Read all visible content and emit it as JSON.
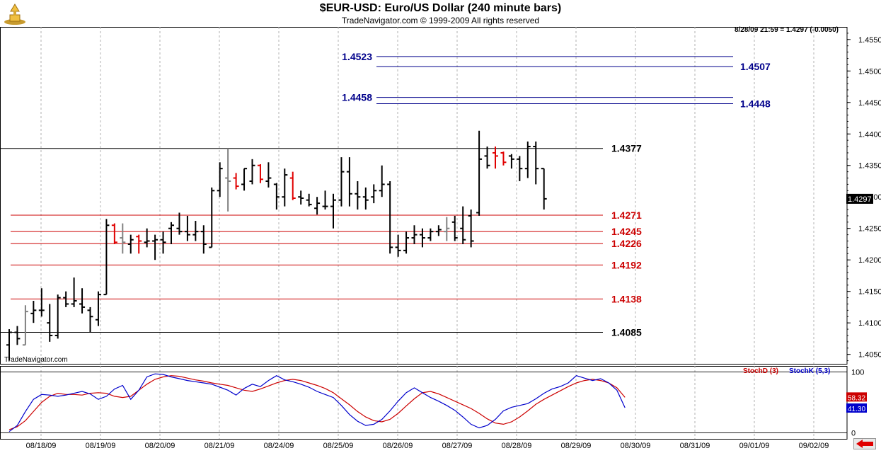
{
  "header": {
    "title": "$EUR-USD:  Euro/US Dollar  (240 minute bars)",
    "subtitle": "TradeNavigator.com © 1999-2009 All rights reserved",
    "quote": "8/28/09 21:59 = 1.4297 (-0.0050)",
    "watermark": "TradeNavigator.com"
  },
  "colors": {
    "up_bar": "#000000",
    "reversal_bar": "#e00000",
    "neutral_bar": "#808080",
    "support_line": "#cc0000",
    "target_line": "#00008b",
    "stoch_d": "#cc0000",
    "stoch_k": "#0000cc"
  },
  "chart_data": [
    {
      "type": "ohlc",
      "title": "$EUR-USD:  Euro/US Dollar  (240 minute bars)",
      "ylim": [
        1.4035,
        1.457
      ],
      "y_ticks": [
        "1.4550",
        "1.4500",
        "1.4450",
        "1.4400",
        "1.4350",
        "1.4300",
        "1.4250",
        "1.4200",
        "1.4150",
        "1.4100",
        "1.4050"
      ],
      "x_labels": [
        "08/18/09",
        "08/19/09",
        "08/20/09",
        "08/21/09",
        "08/24/09",
        "08/25/09",
        "08/26/09",
        "08/27/09",
        "08/28/09",
        "08/29/09",
        "08/30/09",
        "08/31/09",
        "09/01/09",
        "09/02/09"
      ],
      "last_price": "1.4297",
      "bars": [
        {
          "o": 1.4065,
          "h": 1.409,
          "l": 1.404,
          "c": 1.4085,
          "k": "b"
        },
        {
          "o": 1.4085,
          "h": 1.4095,
          "l": 1.4065,
          "c": 1.4075,
          "k": "b"
        },
        {
          "o": 1.4065,
          "h": 1.4128,
          "l": 1.4065,
          "c": 1.4118,
          "k": "g"
        },
        {
          "o": 1.4115,
          "h": 1.4135,
          "l": 1.41,
          "c": 1.412,
          "k": "b"
        },
        {
          "o": 1.412,
          "h": 1.4155,
          "l": 1.411,
          "c": 1.412,
          "k": "b"
        },
        {
          "o": 1.41,
          "h": 1.413,
          "l": 1.407,
          "c": 1.408,
          "k": "b"
        },
        {
          "o": 1.408,
          "h": 1.4145,
          "l": 1.4075,
          "c": 1.414,
          "k": "b"
        },
        {
          "o": 1.414,
          "h": 1.415,
          "l": 1.4125,
          "c": 1.413,
          "k": "b"
        },
        {
          "o": 1.413,
          "h": 1.4172,
          "l": 1.4125,
          "c": 1.4135,
          "k": "b"
        },
        {
          "o": 1.413,
          "h": 1.4155,
          "l": 1.4115,
          "c": 1.4125,
          "k": "b"
        },
        {
          "o": 1.412,
          "h": 1.4125,
          "l": 1.4085,
          "c": 1.411,
          "k": "b"
        },
        {
          "o": 1.4105,
          "h": 1.415,
          "l": 1.4095,
          "c": 1.4145,
          "k": "b"
        },
        {
          "o": 1.4145,
          "h": 1.4265,
          "l": 1.4145,
          "c": 1.4255,
          "k": "b"
        },
        {
          "o": 1.4255,
          "h": 1.4258,
          "l": 1.4225,
          "c": 1.4228,
          "k": "r"
        },
        {
          "o": 1.4235,
          "h": 1.4258,
          "l": 1.421,
          "c": 1.4228,
          "k": "g"
        },
        {
          "o": 1.4225,
          "h": 1.424,
          "l": 1.421,
          "c": 1.4232,
          "k": "b"
        },
        {
          "o": 1.4237,
          "h": 1.424,
          "l": 1.421,
          "c": 1.423,
          "k": "r"
        },
        {
          "o": 1.4228,
          "h": 1.425,
          "l": 1.422,
          "c": 1.423,
          "k": "b"
        },
        {
          "o": 1.423,
          "h": 1.424,
          "l": 1.42,
          "c": 1.4232,
          "k": "b"
        },
        {
          "o": 1.4232,
          "h": 1.4245,
          "l": 1.421,
          "c": 1.4228,
          "k": "b"
        },
        {
          "o": 1.425,
          "h": 1.426,
          "l": 1.4225,
          "c": 1.4255,
          "k": "b"
        },
        {
          "o": 1.425,
          "h": 1.4275,
          "l": 1.424,
          "c": 1.4245,
          "k": "b"
        },
        {
          "o": 1.4245,
          "h": 1.427,
          "l": 1.423,
          "c": 1.424,
          "k": "b"
        },
        {
          "o": 1.424,
          "h": 1.4262,
          "l": 1.423,
          "c": 1.4245,
          "k": "b"
        },
        {
          "o": 1.4245,
          "h": 1.4255,
          "l": 1.421,
          "c": 1.4225,
          "k": "b"
        },
        {
          "o": 1.422,
          "h": 1.4315,
          "l": 1.422,
          "c": 1.431,
          "k": "b"
        },
        {
          "o": 1.431,
          "h": 1.4355,
          "l": 1.43,
          "c": 1.4345,
          "k": "b"
        },
        {
          "o": 1.433,
          "h": 1.4377,
          "l": 1.4277,
          "c": 1.4325,
          "k": "g"
        },
        {
          "o": 1.433,
          "h": 1.4338,
          "l": 1.4312,
          "c": 1.4317,
          "k": "r"
        },
        {
          "o": 1.432,
          "h": 1.4345,
          "l": 1.431,
          "c": 1.4345,
          "k": "b"
        },
        {
          "o": 1.4325,
          "h": 1.436,
          "l": 1.432,
          "c": 1.435,
          "k": "b"
        },
        {
          "o": 1.435,
          "h": 1.4352,
          "l": 1.4322,
          "c": 1.4328,
          "k": "r"
        },
        {
          "o": 1.4325,
          "h": 1.4355,
          "l": 1.4315,
          "c": 1.433,
          "k": "b"
        },
        {
          "o": 1.432,
          "h": 1.4322,
          "l": 1.428,
          "c": 1.43,
          "k": "b"
        },
        {
          "o": 1.43,
          "h": 1.4345,
          "l": 1.4285,
          "c": 1.4335,
          "k": "b"
        },
        {
          "o": 1.433,
          "h": 1.434,
          "l": 1.4295,
          "c": 1.4298,
          "k": "r"
        },
        {
          "o": 1.43,
          "h": 1.431,
          "l": 1.4288,
          "c": 1.4298,
          "k": "b"
        },
        {
          "o": 1.4295,
          "h": 1.4305,
          "l": 1.4285,
          "c": 1.4288,
          "k": "b"
        },
        {
          "o": 1.4282,
          "h": 1.43,
          "l": 1.4272,
          "c": 1.429,
          "k": "b"
        },
        {
          "o": 1.4285,
          "h": 1.431,
          "l": 1.428,
          "c": 1.4285,
          "k": "b"
        },
        {
          "o": 1.4285,
          "h": 1.4305,
          "l": 1.425,
          "c": 1.4295,
          "k": "b"
        },
        {
          "o": 1.4295,
          "h": 1.4363,
          "l": 1.4285,
          "c": 1.434,
          "k": "b"
        },
        {
          "o": 1.434,
          "h": 1.4363,
          "l": 1.4285,
          "c": 1.4305,
          "k": "b"
        },
        {
          "o": 1.4305,
          "h": 1.4325,
          "l": 1.428,
          "c": 1.43,
          "k": "b"
        },
        {
          "o": 1.43,
          "h": 1.4315,
          "l": 1.428,
          "c": 1.4295,
          "k": "b"
        },
        {
          "o": 1.43,
          "h": 1.432,
          "l": 1.429,
          "c": 1.431,
          "k": "b"
        },
        {
          "o": 1.431,
          "h": 1.435,
          "l": 1.43,
          "c": 1.432,
          "k": "b"
        },
        {
          "o": 1.432,
          "h": 1.4325,
          "l": 1.421,
          "c": 1.422,
          "k": "b"
        },
        {
          "o": 1.422,
          "h": 1.424,
          "l": 1.4205,
          "c": 1.4215,
          "k": "b"
        },
        {
          "o": 1.4215,
          "h": 1.4245,
          "l": 1.421,
          "c": 1.4235,
          "k": "b"
        },
        {
          "o": 1.4235,
          "h": 1.4255,
          "l": 1.4225,
          "c": 1.424,
          "k": "b"
        },
        {
          "o": 1.424,
          "h": 1.425,
          "l": 1.422,
          "c": 1.4235,
          "k": "b"
        },
        {
          "o": 1.4235,
          "h": 1.425,
          "l": 1.423,
          "c": 1.4245,
          "k": "b"
        },
        {
          "o": 1.4245,
          "h": 1.4255,
          "l": 1.4238,
          "c": 1.4248,
          "k": "b"
        },
        {
          "o": 1.4245,
          "h": 1.4268,
          "l": 1.423,
          "c": 1.425,
          "k": "g"
        },
        {
          "o": 1.426,
          "h": 1.427,
          "l": 1.423,
          "c": 1.4235,
          "k": "b"
        },
        {
          "o": 1.425,
          "h": 1.4285,
          "l": 1.4225,
          "c": 1.4232,
          "k": "b"
        },
        {
          "o": 1.427,
          "h": 1.428,
          "l": 1.422,
          "c": 1.423,
          "k": "b"
        },
        {
          "o": 1.4275,
          "h": 1.4405,
          "l": 1.427,
          "c": 1.436,
          "k": "b"
        },
        {
          "o": 1.4365,
          "h": 1.438,
          "l": 1.4345,
          "c": 1.435,
          "k": "b"
        },
        {
          "o": 1.437,
          "h": 1.438,
          "l": 1.4345,
          "c": 1.4365,
          "k": "r"
        },
        {
          "o": 1.437,
          "h": 1.4372,
          "l": 1.435,
          "c": 1.4355,
          "k": "r"
        },
        {
          "o": 1.4365,
          "h": 1.4368,
          "l": 1.4345,
          "c": 1.436,
          "k": "b"
        },
        {
          "o": 1.436,
          "h": 1.4365,
          "l": 1.4325,
          "c": 1.4345,
          "k": "b"
        },
        {
          "o": 1.4345,
          "h": 1.4388,
          "l": 1.433,
          "c": 1.438,
          "k": "b"
        },
        {
          "o": 1.438,
          "h": 1.4388,
          "l": 1.432,
          "c": 1.4345,
          "k": "b"
        },
        {
          "o": 1.4345,
          "h": 1.4345,
          "l": 1.428,
          "c": 1.4297,
          "k": "b"
        }
      ],
      "levels": [
        {
          "value": 1.4523,
          "label": "1.4523",
          "group": "target",
          "label_side": "left"
        },
        {
          "value": 1.4507,
          "label": "1.4507",
          "group": "target",
          "label_side": "right"
        },
        {
          "value": 1.4458,
          "label": "1.4458",
          "group": "target",
          "label_side": "left"
        },
        {
          "value": 1.4448,
          "label": "1.4448",
          "group": "target",
          "label_side": "right"
        },
        {
          "value": 1.4377,
          "label": "1.4377",
          "group": "pivot",
          "label_side": "right"
        },
        {
          "value": 1.4271,
          "label": "1.4271",
          "group": "support",
          "label_side": "right"
        },
        {
          "value": 1.4245,
          "label": "1.4245",
          "group": "support",
          "label_side": "right"
        },
        {
          "value": 1.4226,
          "label": "1.4226",
          "group": "support",
          "label_side": "right"
        },
        {
          "value": 1.4192,
          "label": "1.4192",
          "group": "support",
          "label_side": "right"
        },
        {
          "value": 1.4138,
          "label": "1.4138",
          "group": "support",
          "label_side": "right"
        },
        {
          "value": 1.4085,
          "label": "1.4085",
          "group": "pivot",
          "label_side": "right"
        }
      ]
    },
    {
      "type": "line",
      "ylim": [
        -10,
        110
      ],
      "y_ticks": [
        "100",
        "0"
      ],
      "series": [
        {
          "name": "StochD (3)",
          "color": "#cc0000",
          "values": [
            5,
            10,
            20,
            35,
            50,
            60,
            65,
            63,
            63,
            62,
            65,
            66,
            65,
            60,
            58,
            60,
            70,
            80,
            88,
            92,
            94,
            93,
            90,
            87,
            85,
            82,
            80,
            78,
            74,
            70,
            68,
            72,
            77,
            82,
            86,
            88,
            86,
            82,
            78,
            73,
            66,
            56,
            46,
            35,
            26,
            20,
            18,
            22,
            32,
            44,
            56,
            66,
            68,
            64,
            58,
            52,
            46,
            40,
            32,
            23,
            16,
            14,
            18,
            26,
            36,
            47,
            55,
            62,
            69,
            76,
            82,
            86,
            88,
            86,
            82,
            74,
            58.32
          ]
        },
        {
          "name": "StochK (5,3)",
          "color": "#0000cc",
          "values": [
            2,
            12,
            35,
            55,
            63,
            62,
            60,
            62,
            65,
            68,
            64,
            55,
            60,
            72,
            78,
            55,
            70,
            92,
            97,
            96,
            92,
            89,
            86,
            84,
            82,
            80,
            75,
            70,
            62,
            73,
            80,
            76,
            86,
            94,
            87,
            84,
            80,
            75,
            68,
            63,
            58,
            45,
            30,
            19,
            12,
            14,
            22,
            36,
            52,
            66,
            74,
            66,
            58,
            52,
            45,
            37,
            26,
            14,
            8,
            12,
            22,
            36,
            42,
            45,
            48,
            56,
            65,
            72,
            76,
            82,
            94,
            90,
            86,
            89,
            82,
            70,
            41.3
          ]
        }
      ],
      "last_values": {
        "d": "58.32",
        "k": "41.30"
      }
    }
  ]
}
